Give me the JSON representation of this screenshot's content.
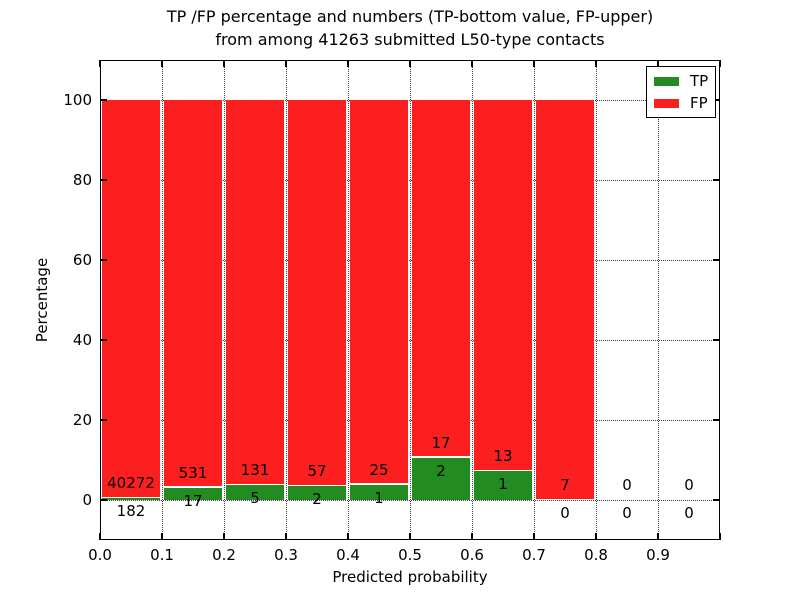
{
  "title": {
    "line1": "TP /FP percentage and numbers (TP-bottom value, FP-upper)",
    "line2": "from among 41263 submitted L50-type contacts"
  },
  "axes": {
    "xlabel": "Predicted probability",
    "ylabel": "Percentage"
  },
  "legend": [
    {
      "label": "TP",
      "color": "#228b22"
    },
    {
      "label": "FP",
      "color": "#fb1f1f"
    }
  ],
  "chart_data": {
    "type": "bar",
    "stacked": true,
    "normalized": "each bin stacked to 100% (TP bottom, FP upper), counts annotated",
    "title": "TP /FP percentage and numbers (TP-bottom value, FP-upper) from among 41263 submitted L50-type contacts",
    "total_submitted": 41263,
    "xlabel": "Predicted probability",
    "ylabel": "Percentage",
    "xlim": [
      0.0,
      1.0
    ],
    "ylim": [
      -10,
      110
    ],
    "grid": "dotted",
    "legend_position": "upper right",
    "series_colors": {
      "TP": "#228b22",
      "FP": "#fb1f1f"
    },
    "x_tick_labels": [
      "0.0",
      "0.1",
      "0.2",
      "0.3",
      "0.4",
      "0.5",
      "0.6",
      "0.7",
      "0.8",
      "0.9"
    ],
    "y_tick_values": [
      0,
      20,
      40,
      60,
      80,
      100
    ],
    "y_tick_labels": [
      "0",
      "20",
      "40",
      "60",
      "80",
      "100"
    ],
    "bins": [
      {
        "range": [
          0.0,
          0.1
        ],
        "tp": 182,
        "fp": 40272
      },
      {
        "range": [
          0.1,
          0.2
        ],
        "tp": 17,
        "fp": 531
      },
      {
        "range": [
          0.2,
          0.3
        ],
        "tp": 5,
        "fp": 131
      },
      {
        "range": [
          0.3,
          0.4
        ],
        "tp": 2,
        "fp": 57
      },
      {
        "range": [
          0.4,
          0.5
        ],
        "tp": 1,
        "fp": 25
      },
      {
        "range": [
          0.5,
          0.6
        ],
        "tp": 2,
        "fp": 17
      },
      {
        "range": [
          0.6,
          0.7
        ],
        "tp": 1,
        "fp": 13
      },
      {
        "range": [
          0.7,
          0.8
        ],
        "tp": 0,
        "fp": 7
      },
      {
        "range": [
          0.8,
          0.9
        ],
        "tp": 0,
        "fp": 0
      },
      {
        "range": [
          0.9,
          1.0
        ],
        "tp": 0,
        "fp": 0
      }
    ]
  }
}
